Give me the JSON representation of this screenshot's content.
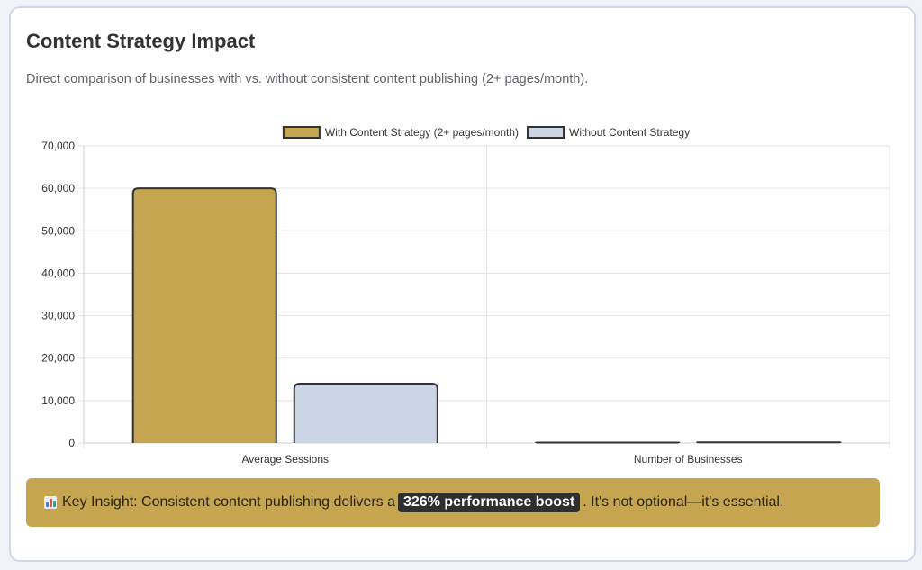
{
  "header": {
    "title": "Content Strategy Impact",
    "subtitle": "Direct comparison of businesses with vs. without consistent content publishing (2+ pages/month)."
  },
  "chart_data": {
    "type": "bar",
    "categories": [
      "Average Sessions",
      "Number of Businesses"
    ],
    "series": [
      {
        "name": "With Content Strategy (2+ pages/month)",
        "values": [
          60000,
          100
        ],
        "color": "#c6a551"
      },
      {
        "name": "Without Content Strategy",
        "values": [
          14000,
          150
        ],
        "color": "#cbd5e5"
      }
    ],
    "ylim": [
      0,
      70000
    ],
    "y_ticks": [
      0,
      10000,
      20000,
      30000,
      40000,
      50000,
      60000,
      70000
    ],
    "y_tick_labels": [
      "0",
      "10,000",
      "20,000",
      "30,000",
      "40,000",
      "50,000",
      "60,000",
      "70,000"
    ],
    "grid": true,
    "legend_position": "top-center",
    "bar_border_color": "#333333"
  },
  "insight": {
    "icon": "bar-chart-icon",
    "prefix": "Key Insight: Consistent content publishing delivers a",
    "highlight": "326% performance boost",
    "suffix": ". It's not optional—it's essential."
  }
}
